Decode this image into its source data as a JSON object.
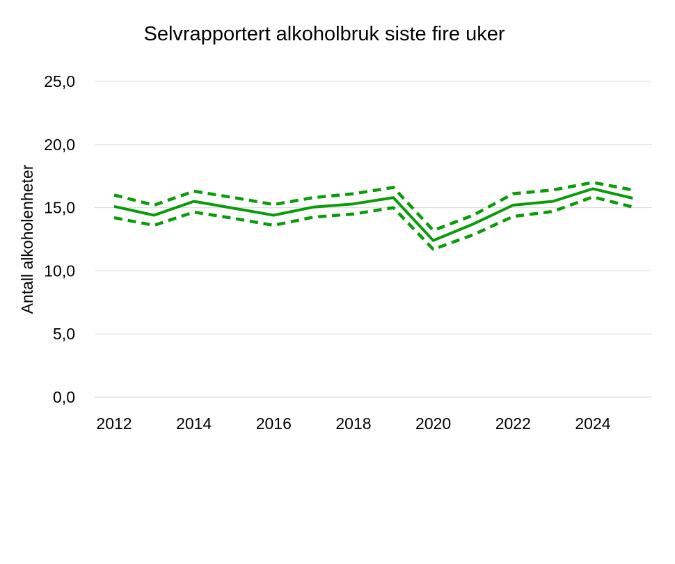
{
  "chart_data": {
    "type": "line",
    "title": "Selvrapportert alkoholbruk siste fire uker",
    "xlabel": "",
    "ylabel": "Antall alkoholenheter",
    "ylim": [
      0,
      25
    ],
    "yticks": [
      "0,0",
      "5,0",
      "10,0",
      "15,0",
      "20,0",
      "25,0"
    ],
    "ytick_values": [
      0,
      5,
      10,
      15,
      20,
      25
    ],
    "xticks": [
      "2012",
      "2014",
      "2016",
      "2018",
      "2020",
      "2022",
      "2024"
    ],
    "xlim": [
      2012,
      2025
    ],
    "grid": true,
    "color": "#0a9b0a",
    "x": [
      2012,
      2013,
      2014,
      2015,
      2016,
      2017,
      2018,
      2019,
      2020,
      2021,
      2022,
      2023,
      2024,
      2025
    ],
    "series": [
      {
        "style": "solid",
        "values": [
          15.1,
          14.4,
          15.5,
          14.95,
          14.4,
          15.05,
          15.3,
          15.8,
          12.4,
          13.7,
          15.2,
          15.5,
          16.5,
          15.75
        ]
      },
      {
        "style": "dashed",
        "values": [
          16.0,
          15.2,
          16.3,
          15.8,
          15.25,
          15.8,
          16.1,
          16.6,
          13.2,
          14.4,
          16.1,
          16.4,
          17.0,
          16.4
        ]
      },
      {
        "style": "dashed",
        "values": [
          14.2,
          13.6,
          14.65,
          14.15,
          13.6,
          14.25,
          14.5,
          15.0,
          11.7,
          12.85,
          14.3,
          14.7,
          15.85,
          15.05
        ]
      }
    ]
  }
}
